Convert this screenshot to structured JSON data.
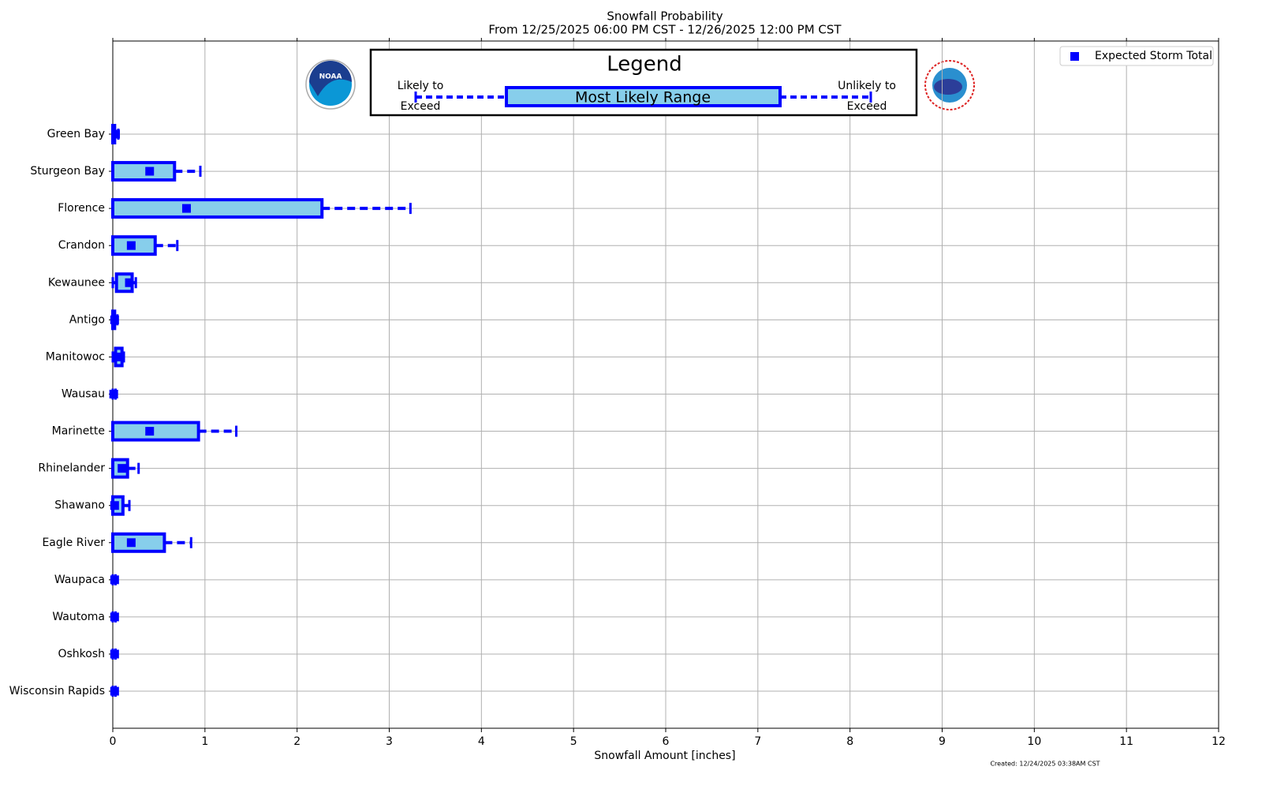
{
  "chart_data": {
    "type": "range",
    "title": "Snowfall Probability",
    "subtitle": "From 12/25/2025 06:00 PM CST - 12/26/2025 12:00 PM CST",
    "x_label": "Snowfall Amount [inches]",
    "footnote": "Created: 12/24/2025 03:38AM CST",
    "categories": [
      "Green Bay",
      "Sturgeon Bay",
      "Florence",
      "Crandon",
      "Kewaunee",
      "Antigo",
      "Manitowoc",
      "Wausau",
      "Marinette",
      "Rhinelander",
      "Shawano",
      "Eagle River",
      "Waupaca",
      "Wautoma",
      "Oshkosh",
      "Wisconsin Rapids"
    ],
    "low": [
      0,
      0,
      0,
      0,
      0,
      0,
      0,
      0,
      0,
      0,
      0,
      0,
      0,
      0,
      0,
      0
    ],
    "box_low": [
      0,
      0,
      0,
      0,
      0.04,
      0,
      0.03,
      0,
      0,
      0,
      0,
      0,
      0,
      0,
      0,
      0
    ],
    "box_high": [
      0.02,
      0.67,
      2.27,
      0.46,
      0.21,
      0.02,
      0.1,
      0,
      0.93,
      0.16,
      0.11,
      0.56,
      0,
      0,
      0,
      0
    ],
    "high": [
      0.06,
      0.95,
      3.23,
      0.7,
      0.25,
      0.05,
      0.12,
      0.03,
      1.34,
      0.28,
      0.18,
      0.85,
      0.03,
      0.03,
      0.03,
      0.03
    ],
    "expected": {
      "name": "Expected Storm Total",
      "color": "#0000ff",
      "values": [
        0.03,
        0.4,
        0.8,
        0.2,
        0.18,
        0.02,
        0.05,
        0.01,
        0.4,
        0.1,
        0.02,
        0.2,
        0.02,
        0.02,
        0.02,
        0.02
      ]
    },
    "box_color": "#87ceeb",
    "edge_color": "#0000ff",
    "xlim": [
      0,
      12
    ],
    "xticks": [
      0,
      1,
      2,
      3,
      4,
      5,
      6,
      7,
      8,
      9,
      10,
      11,
      12
    ],
    "grid": true,
    "legend_position": "upper right",
    "key": {
      "title": "Legend",
      "left_label": [
        "Likely to",
        "Exceed"
      ],
      "center_label": "Most Likely Range",
      "right_label": [
        "Unlikely to",
        "Exceed"
      ]
    },
    "logo_text": "NOAA"
  }
}
